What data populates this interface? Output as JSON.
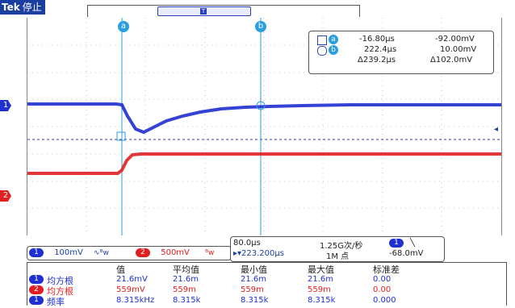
{
  "header": {
    "brand": "Tek",
    "status": "停止",
    "trigger_glyph": "T"
  },
  "cursors": {
    "a_label": "a",
    "b_label": "b",
    "a_time": "-16.80µs",
    "a_volt": "-92.00mV",
    "b_time": "222.4µs",
    "b_volt": "10.00mV",
    "delta_time": "Δ239.2µs",
    "delta_volt": "Δ102.0mV"
  },
  "channels": {
    "ch1": {
      "num": "1",
      "scale": "100mV",
      "coupling": "∿ᴮw",
      "color": "#1f2fd0"
    },
    "ch2": {
      "num": "2",
      "scale": "500mV",
      "coupling": "ᴮw",
      "color": "#e02020"
    }
  },
  "timebase": {
    "scale": "80.0µs",
    "sample_rate": "1.25G次/秒",
    "trigger_pos": "▸▾223.200µs",
    "record_length": "1M 点",
    "trigger_ch": "1",
    "trigger_slope": "╲",
    "trigger_level": "-68.0mV"
  },
  "measurements": {
    "headers": [
      "值",
      "平均值",
      "最小值",
      "最大值",
      "标准差"
    ],
    "rows": [
      {
        "ch": "1",
        "name": "均方根",
        "values": [
          "21.6mV",
          "21.6m",
          "21.6m",
          "21.6m",
          "0.00"
        ],
        "color": "#1f2fd0"
      },
      {
        "ch": "2",
        "name": "均方根",
        "values": [
          "559mV",
          "559m",
          "559m",
          "559m",
          "0.00"
        ],
        "color": "#e02020"
      },
      {
        "ch": "1",
        "name": "频率",
        "values": [
          "8.315kHz",
          "8.315k",
          "8.315k",
          "8.315k",
          "0.000"
        ],
        "color": "#1f2fd0"
      }
    ]
  },
  "colors": {
    "ch1": "#1f2fd0",
    "ch2": "#e02020",
    "cursor": "#2a9fe0",
    "grid": "#b8b8b8"
  }
}
